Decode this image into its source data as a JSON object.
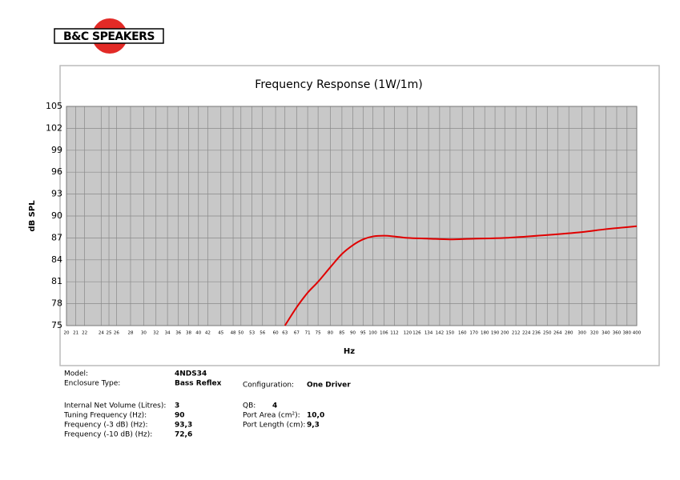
{
  "logo": "B&C SPEAKERS",
  "chart_data": {
    "type": "line",
    "title": "Frequency Response (1W/1m)",
    "xlabel": "Hz",
    "ylabel": "dB SPL",
    "x": [
      63,
      67,
      71,
      75,
      80,
      85,
      90,
      95,
      100,
      106,
      112,
      120,
      134,
      150,
      170,
      200,
      250,
      300,
      340,
      400
    ],
    "values": [
      75,
      77.5,
      79.5,
      81,
      83,
      84.8,
      86,
      86.8,
      87.2,
      87.3,
      87.2,
      87.0,
      86.9,
      86.8,
      86.9,
      87.0,
      87.4,
      87.8,
      88.2,
      88.6
    ],
    "color": "#e00000",
    "xlim": [
      20,
      400
    ],
    "xscale": "log",
    "xticks": [
      20,
      21,
      22,
      24,
      25,
      26,
      28,
      30,
      32,
      34,
      36,
      38,
      40,
      42,
      45,
      48,
      50,
      53,
      56,
      60,
      63,
      67,
      71,
      75,
      80,
      85,
      90,
      95,
      100,
      106,
      112,
      120,
      126,
      134,
      142,
      150,
      160,
      170,
      180,
      190,
      200,
      212,
      224,
      236,
      250,
      264,
      280,
      300,
      320,
      340,
      360,
      380,
      400
    ],
    "ylim": [
      75,
      105
    ],
    "yticks": [
      75,
      78,
      81,
      84,
      87,
      90,
      93,
      96,
      99,
      102,
      105
    ],
    "grid": true
  },
  "specs": {
    "left": [
      [
        "Model:",
        "4NDS34"
      ],
      [
        "Enclosure Type:",
        "Bass Reflex"
      ],
      [
        "Internal Net Volume (Litres):",
        "3"
      ],
      [
        "Tuning Frequency (Hz):",
        "90"
      ],
      [
        "Frequency (-3 dB) (Hz):",
        "93,3"
      ],
      [
        "Frequency (-10 dB) (Hz):",
        "72,6"
      ]
    ],
    "right": [
      [
        "Configuration:",
        "One Driver"
      ],
      [
        "QB:",
        "4"
      ],
      [
        "Port Area (cm²):",
        "10,0"
      ],
      [
        "Port Length (cm):",
        "9,3"
      ]
    ]
  }
}
